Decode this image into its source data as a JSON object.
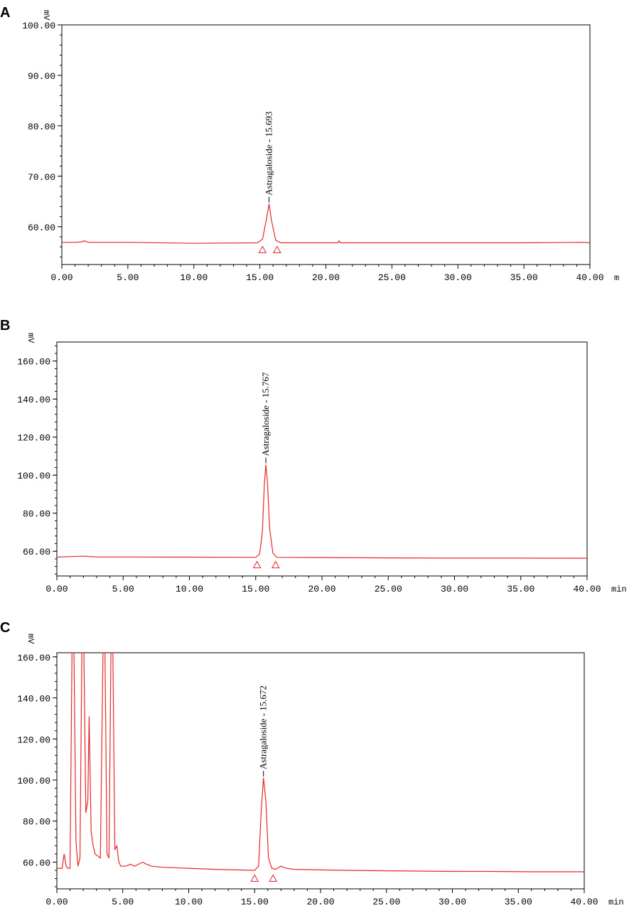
{
  "chart_data": [
    {
      "panel": "A",
      "type": "line",
      "ylabel": "mV",
      "xlabel": "m",
      "xlim": [
        0,
        40
      ],
      "ylim": [
        52.5,
        100
      ],
      "xticks": [
        "0.00",
        "5.00",
        "10.00",
        "15.00",
        "20.00",
        "25.00",
        "30.00",
        "35.00",
        "40.00"
      ],
      "yticks": [
        "60.00",
        "70.00",
        "80.00",
        "90.00",
        "100.00"
      ],
      "ytick_values": [
        60,
        70,
        80,
        90,
        100
      ],
      "peak_label": "Astragaloside - 15.693",
      "peak": {
        "x": 15.693,
        "y": 64.5
      },
      "baseline_markers": [
        15.2,
        16.3
      ],
      "baseline": 56.8,
      "series": [
        {
          "color": "#e8262a",
          "x": [
            0,
            1,
            1.5,
            1.7,
            2,
            5,
            10,
            14.8,
            15.2,
            15.5,
            15.693,
            15.9,
            16.2,
            16.6,
            20,
            20.9,
            21,
            21.1,
            25,
            30,
            35,
            39.5,
            40
          ],
          "y": [
            56.9,
            56.9,
            57.0,
            57.2,
            56.9,
            56.9,
            56.7,
            56.8,
            57.5,
            61.5,
            64.5,
            61.0,
            57.3,
            56.8,
            56.8,
            56.8,
            57.2,
            56.8,
            56.8,
            56.8,
            56.8,
            56.9,
            56.8
          ]
        }
      ]
    },
    {
      "panel": "B",
      "type": "line",
      "ylabel": "mV",
      "xlabel": "min",
      "xlim": [
        0,
        40
      ],
      "ylim": [
        47,
        170
      ],
      "xticks": [
        "0.00",
        "5.00",
        "10.00",
        "15.00",
        "20.00",
        "25.00",
        "30.00",
        "35.00",
        "40.00"
      ],
      "yticks": [
        "60.00",
        "80.00",
        "100.00",
        "120.00",
        "140.00",
        "160.00"
      ],
      "ytick_values": [
        60,
        80,
        100,
        120,
        140,
        160
      ],
      "peak_label": "Astragaloside - 15.767",
      "peak": {
        "x": 15.767,
        "y": 105.5
      },
      "baseline_markers": [
        15.1,
        16.5
      ],
      "baseline": 56.5,
      "series": [
        {
          "color": "#e8262a",
          "x": [
            0,
            1,
            2,
            3,
            5,
            10,
            15,
            15.3,
            15.5,
            15.65,
            15.767,
            15.9,
            16.05,
            16.3,
            16.6,
            20,
            25,
            30,
            35,
            40
          ],
          "y": [
            56.9,
            57.2,
            57.4,
            57.0,
            57.0,
            56.9,
            56.8,
            58.5,
            70,
            95,
            105.5,
            95,
            72,
            59,
            56.8,
            56.7,
            56.5,
            56.4,
            56.4,
            56.3
          ]
        }
      ]
    },
    {
      "panel": "C",
      "type": "line",
      "ylabel": "mV",
      "xlabel": "min",
      "xlim": [
        0,
        40
      ],
      "ylim": [
        47,
        162
      ],
      "xticks": [
        "0.00",
        "5.00",
        "10.00",
        "15.00",
        "20.00",
        "25.00",
        "30.00",
        "35.00",
        "40.00"
      ],
      "yticks": [
        "60.00",
        "80.00",
        "100.00",
        "120.00",
        "140.00",
        "160.00"
      ],
      "ytick_values": [
        60,
        80,
        100,
        120,
        140,
        160
      ],
      "peak_label": "Astragaloside - 15.672",
      "peak": {
        "x": 15.672,
        "y": 101
      },
      "baseline_markers": [
        15.0,
        16.4
      ],
      "baseline": 55.5,
      "series": [
        {
          "color": "#e8262a",
          "x": [
            0,
            0.4,
            0.55,
            0.7,
            0.85,
            1.0,
            1.15,
            1.3,
            1.45,
            1.6,
            1.75,
            1.9,
            2.05,
            2.2,
            2.35,
            2.45,
            2.6,
            2.75,
            2.9,
            3.1,
            3.3,
            3.5,
            3.65,
            3.8,
            3.95,
            4.1,
            4.25,
            4.4,
            4.55,
            4.7,
            4.85,
            5.2,
            5.6,
            5.9,
            6.2,
            6.5,
            6.8,
            7.2,
            8,
            10,
            12,
            15,
            15.3,
            15.5,
            15.672,
            15.85,
            16.05,
            16.3,
            16.6,
            17,
            17.4,
            18,
            20,
            22,
            25,
            30,
            33,
            36,
            40
          ],
          "y": [
            57,
            57,
            64,
            58,
            57,
            57,
            162,
            162,
            70,
            58,
            62,
            162,
            162,
            84,
            90,
            131,
            75,
            68,
            64,
            63,
            62,
            162,
            162,
            64,
            62,
            162,
            162,
            66,
            68,
            60,
            58,
            58,
            59,
            58,
            59,
            60,
            59,
            58,
            57.5,
            57,
            56.5,
            56,
            58,
            85,
            101,
            90,
            62,
            57,
            56.5,
            58,
            57,
            56.5,
            56.2,
            56,
            55.8,
            55.5,
            55.5,
            55.3,
            55.3
          ]
        }
      ]
    }
  ]
}
